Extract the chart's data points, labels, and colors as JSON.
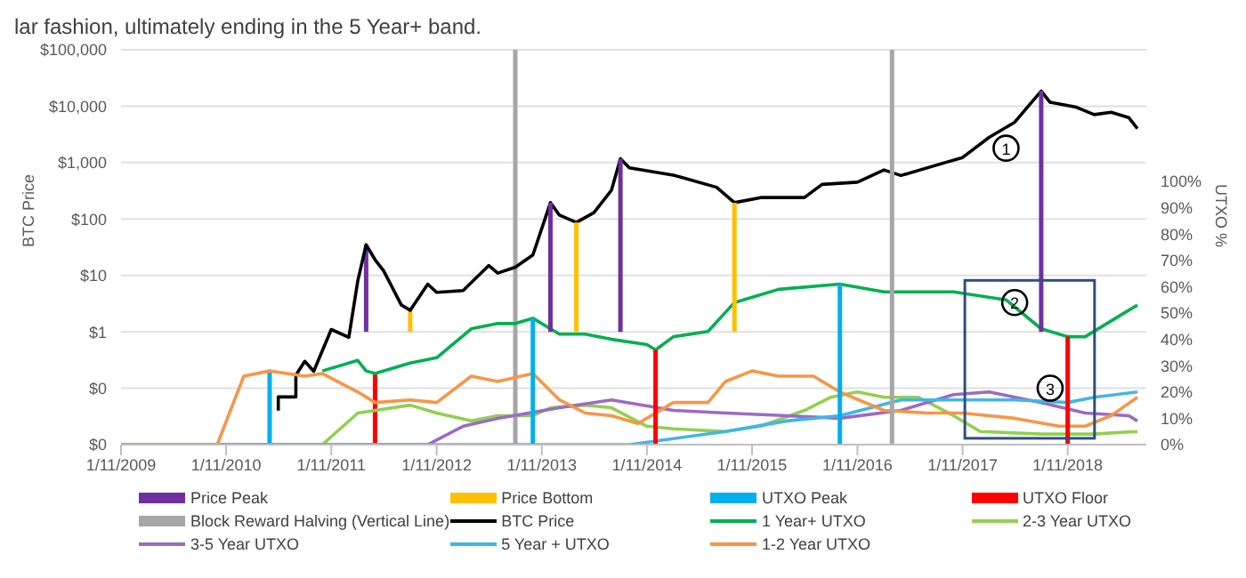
{
  "chart_data": {
    "type": "line",
    "title": "lar fashion, ultimately ending in the 5 Year+ band.",
    "ylabel": "BTC Price",
    "y2label": "UTXO %",
    "log": "y",
    "grid": "y",
    "legend": "bottom",
    "marker": "none",
    "line_style": "solid",
    "xlim": [
      "2009-11",
      "2019-08"
    ],
    "xticks": [
      {
        "value": "2009-11-01",
        "label": "1/11/2009"
      },
      {
        "value": "2010-11-01",
        "label": "1/11/2010"
      },
      {
        "value": "2011-11-01",
        "label": "1/11/2011"
      },
      {
        "value": "2012-11-01",
        "label": "1/11/2012"
      },
      {
        "value": "2013-11-01",
        "label": "1/11/2013"
      },
      {
        "value": "2014-11-01",
        "label": "1/11/2014"
      },
      {
        "value": "2015-11-01",
        "label": "1/11/2015"
      },
      {
        "value": "2016-11-01",
        "label": "1/11/2016"
      },
      {
        "value": "2017-11-01",
        "label": "1/11/2017"
      },
      {
        "value": "2018-11-01",
        "label": "1/11/2018"
      }
    ],
    "ylim": [
      0.01,
      100000
    ],
    "yticks": [
      {
        "value": 0.01,
        "label": "$0"
      },
      {
        "value": 0.1,
        "label": "$0"
      },
      {
        "value": 1,
        "label": "$1"
      },
      {
        "value": 10,
        "label": "$10"
      },
      {
        "value": 100,
        "label": "$100"
      },
      {
        "value": 1000,
        "label": "$1,000"
      },
      {
        "value": 10000,
        "label": "$10,000"
      },
      {
        "value": 100000,
        "label": "$100,000"
      }
    ],
    "y2lim": [
      0,
      150
    ],
    "y2ticks": [
      {
        "value": 0,
        "label": "0%"
      },
      {
        "value": 10,
        "label": "10%"
      },
      {
        "value": 20,
        "label": "20%"
      },
      {
        "value": 30,
        "label": "30%"
      },
      {
        "value": 40,
        "label": "40%"
      },
      {
        "value": 50,
        "label": "50%"
      },
      {
        "value": 60,
        "label": "60%"
      },
      {
        "value": 70,
        "label": "70%"
      },
      {
        "value": 80,
        "label": "80%"
      },
      {
        "value": 90,
        "label": "90%"
      },
      {
        "value": 100,
        "label": "100%"
      }
    ],
    "series": [
      {
        "name": "Price Peak",
        "color": "#7030a0",
        "axis": "y",
        "x": [
          "2012-03",
          "2012-03"
        ],
        "values": [
          1,
          35
        ]
      },
      {
        "name": "Price Bottom",
        "color": "#ffc000",
        "axis": "y",
        "x": [
          "2012-08",
          "2012-08"
        ],
        "values": [
          1,
          2.4
        ]
      },
      {
        "name": "UTXO Peak",
        "color": "#00b0f0",
        "axis": "y2",
        "x": [
          "2011-04",
          "2011-04"
        ],
        "values": [
          0,
          28
        ]
      },
      {
        "name": "UTXO Floor",
        "color": "#ff0000",
        "axis": "y2",
        "x": [
          "2012-04",
          "2012-04"
        ],
        "values": [
          0,
          27
        ]
      },
      {
        "name": "Block Reward Halving (Vertical Line)",
        "color": "#a6a6a6",
        "axis": "y",
        "x": [
          "2013-08",
          "2013-08"
        ],
        "values": [
          0.01,
          100000
        ]
      },
      {
        "name": "BTC Price",
        "color": "#000000",
        "axis": "y",
        "x": [
          "2011-05",
          "2011-05",
          "2011-07",
          "2011-07",
          "2011-08",
          "2011-09",
          "2011-11",
          "2012-01",
          "2012-02",
          "2012-03",
          "2012-04",
          "2012-05",
          "2012-07",
          "2012-08",
          "2012-10",
          "2012-11",
          "2013-02",
          "2013-05",
          "2013-06",
          "2013-08",
          "2013-10",
          "2013-12",
          "2014-01",
          "2014-03",
          "2014-05",
          "2014-07",
          "2014-08",
          "2014-09",
          "2015-02",
          "2015-07",
          "2015-09",
          "2015-12",
          "2016-05",
          "2016-07",
          "2016-11",
          "2017-02",
          "2017-04",
          "2017-09",
          "2017-11",
          "2018-02",
          "2018-05",
          "2018-08",
          "2018-09",
          "2018-12",
          "2019-02",
          "2019-04",
          "2019-06",
          "2019-07"
        ],
        "values": [
          0.04,
          0.07,
          0.07,
          0.17,
          0.3,
          0.2,
          1.1,
          0.8,
          8,
          35,
          19,
          12,
          3,
          2.4,
          7,
          5,
          5.4,
          15,
          11,
          14,
          23,
          195,
          117,
          87,
          130,
          325,
          1170,
          810,
          600,
          365,
          195,
          240,
          240,
          410,
          450,
          740,
          590,
          1000,
          1230,
          2800,
          5200,
          18600,
          11700,
          9600,
          7100,
          7800,
          6300,
          4000
        ]
      },
      {
        "name": "1 Year+ UTXO",
        "color": "#00b050",
        "axis": "y2",
        "x": [
          "2011-10",
          "2012-02",
          "2012-03",
          "2012-04",
          "2012-08",
          "2012-11",
          "2013-03",
          "2013-06",
          "2013-08",
          "2013-10",
          "2014-01",
          "2014-04",
          "2014-07",
          "2014-11",
          "2014-12",
          "2015-02",
          "2015-06",
          "2015-09",
          "2016-02",
          "2016-09",
          "2017-02",
          "2017-10",
          "2018-04",
          "2018-08",
          "2018-11",
          "2019-01",
          "2019-04",
          "2019-07"
        ],
        "values": [
          28,
          32,
          28,
          27,
          31,
          33,
          44,
          46,
          46,
          48,
          42,
          42,
          40,
          38,
          36,
          41,
          43,
          54,
          59,
          61,
          58,
          58,
          55,
          44,
          41,
          41,
          47,
          53
        ]
      },
      {
        "name": "2-3 Year UTXO",
        "color": "#92d050",
        "axis": "y2",
        "x": [
          "2009-11",
          "2011-10",
          "2012-02",
          "2012-08",
          "2012-11",
          "2013-03",
          "2013-06",
          "2013-10",
          "2013-12",
          "2014-04",
          "2014-07",
          "2014-11",
          "2015-02",
          "2015-08",
          "2015-12",
          "2016-05",
          "2016-08",
          "2016-11",
          "2017-02",
          "2017-06",
          "2017-10",
          "2018-01",
          "2018-08",
          "2019-02",
          "2019-07"
        ],
        "values": [
          0,
          0,
          12,
          15,
          12,
          9,
          11,
          11,
          14,
          15,
          14,
          7,
          6,
          5,
          7,
          13,
          18,
          20,
          18,
          18,
          11,
          5,
          4,
          4,
          5
        ]
      },
      {
        "name": "3-5 Year UTXO",
        "color": "#9b6bc4",
        "axis": "y2",
        "x": [
          "2009-11",
          "2012-10",
          "2013-02",
          "2013-06",
          "2014-01",
          "2014-07",
          "2015-02",
          "2015-08",
          "2016-03",
          "2016-09",
          "2017-04",
          "2017-10",
          "2018-02",
          "2018-08",
          "2019-01",
          "2019-06",
          "2019-07"
        ],
        "values": [
          0,
          0,
          7,
          10,
          14,
          17,
          13,
          12,
          11,
          10,
          13,
          19,
          20,
          16,
          12,
          11,
          9
        ]
      },
      {
        "name": "5 Year + UTXO",
        "color": "#41b6e6",
        "axis": "y2",
        "x": [
          "2009-11",
          "2014-09",
          "2015-08",
          "2016-03",
          "2016-09",
          "2017-04",
          "2018-05",
          "2018-11",
          "2019-02",
          "2019-07"
        ],
        "values": [
          0,
          0,
          5,
          9,
          11,
          17,
          17,
          16,
          18,
          20
        ]
      },
      {
        "name": "1-2 Year UTXO",
        "color": "#f79646",
        "axis": "y2",
        "x": [
          "2009-11",
          "2010-10",
          "2011-01",
          "2011-04",
          "2011-08",
          "2011-10",
          "2012-02",
          "2012-04",
          "2012-08",
          "2012-11",
          "2013-03",
          "2013-06",
          "2013-10",
          "2014-01",
          "2014-04",
          "2014-07",
          "2014-10",
          "2015-02",
          "2015-06",
          "2015-08",
          "2015-11",
          "2016-02",
          "2016-06",
          "2016-09",
          "2017-02",
          "2017-07",
          "2017-11",
          "2018-05",
          "2018-10",
          "2019-01",
          "2019-04",
          "2019-07"
        ],
        "values": [
          0,
          0,
          26,
          28,
          26,
          27,
          20,
          16,
          17,
          16,
          26,
          24,
          27,
          17,
          12,
          11,
          8,
          16,
          16,
          24,
          28,
          26,
          26,
          20,
          13,
          12,
          12,
          10,
          7,
          7,
          11,
          18
        ]
      },
      {
        "color": "#7030a0",
        "axis": "y",
        "x": [
          "2013-12",
          "2013-12"
        ],
        "values": [
          1,
          195
        ]
      },
      {
        "color": "#7030a0",
        "axis": "y",
        "x": [
          "2014-08",
          "2014-08"
        ],
        "values": [
          1,
          1170
        ]
      },
      {
        "color": "#7030a0",
        "axis": "y",
        "x": [
          "2018-08",
          "2018-08"
        ],
        "values": [
          1,
          18600
        ]
      },
      {
        "color": "#ffc000",
        "axis": "y",
        "x": [
          "2014-03",
          "2014-03"
        ],
        "values": [
          1,
          87
        ]
      },
      {
        "color": "#ffc000",
        "axis": "y",
        "x": [
          "2015-09",
          "2015-09"
        ],
        "values": [
          1,
          195
        ]
      },
      {
        "color": "#00b0f0",
        "axis": "y2",
        "x": [
          "2013-10",
          "2013-10"
        ],
        "values": [
          0,
          48
        ]
      },
      {
        "color": "#00b0f0",
        "axis": "y2",
        "x": [
          "2016-09",
          "2016-09"
        ],
        "values": [
          0,
          61
        ]
      },
      {
        "color": "#ff0000",
        "axis": "y2",
        "x": [
          "2014-12",
          "2014-12"
        ],
        "values": [
          0,
          36
        ]
      },
      {
        "color": "#ff0000",
        "axis": "y2",
        "x": [
          "2018-11",
          "2018-11"
        ],
        "values": [
          0,
          41
        ]
      },
      {
        "color": "#a6a6a6",
        "axis": "y",
        "x": [
          "2017-03",
          "2017-03"
        ],
        "values": [
          0.01,
          100000
        ]
      }
    ],
    "annotations": [
      {
        "text": "1",
        "x": "2018-04",
        "y": 1800
      },
      {
        "text": "2",
        "x": "2018-05",
        "y": 3.3
      },
      {
        "text": "3",
        "x": "2018-09",
        "y": 0.1
      }
    ]
  }
}
